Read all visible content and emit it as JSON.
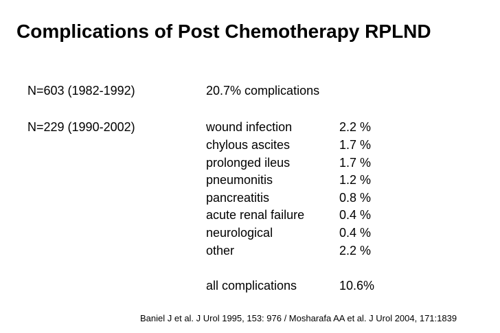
{
  "title": "Complications of Post Chemotherapy RPLND",
  "cohort1": {
    "label": "N=603 (1982-1992)",
    "result": "20.7% complications"
  },
  "cohort2": {
    "label": "N=229 (1990-2002)",
    "complications": [
      {
        "name": "wound infection",
        "rate": "2.2 %"
      },
      {
        "name": "chylous ascites",
        "rate": "1.7 %"
      },
      {
        "name": "prolonged ileus",
        "rate": "1.7 %"
      },
      {
        "name": "pneumonitis",
        "rate": "1.2 %"
      },
      {
        "name": "pancreatitis",
        "rate": "0.8 %"
      },
      {
        "name": "acute renal failure",
        "rate": "0.4 %"
      },
      {
        "name": "neurological",
        "rate": "0.4 %"
      },
      {
        "name": "other",
        "rate": "2.2 %"
      }
    ],
    "total": {
      "name": "all complications",
      "rate": "10.6%"
    }
  },
  "citation": "Baniel J et al. J Urol 1995, 153: 976 / Mosharafa AA et al. J Urol 2004, 171:1839"
}
